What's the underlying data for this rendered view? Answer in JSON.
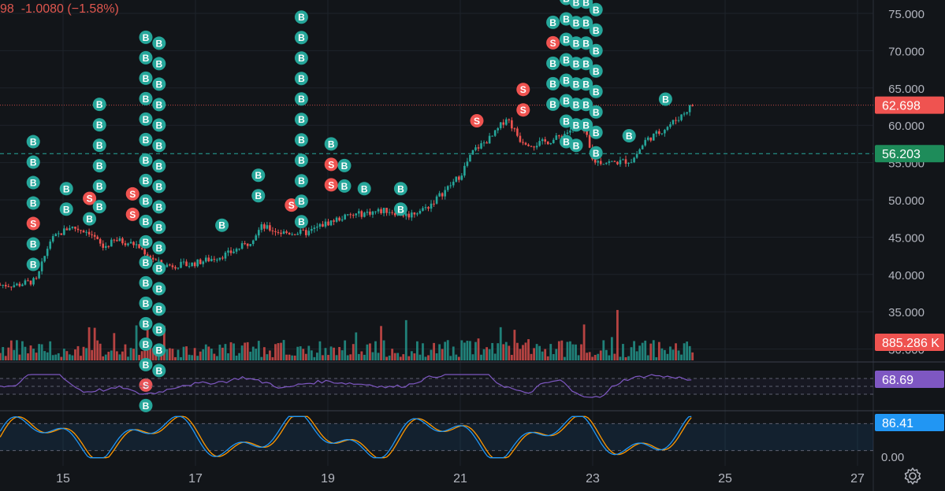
{
  "header": {
    "price_fragment": "98",
    "change": "-1.0080",
    "change_pct": "(−1.58%)"
  },
  "colors": {
    "background": "#121519",
    "up": "#26a69a",
    "down": "#ef5350",
    "rsi": "#7e57c2",
    "stoch_k": "#2196f3",
    "stoch_d": "#ff9800",
    "grid": "#1e232a",
    "axis_text": "#b2b5be"
  },
  "badges": {
    "last_price": "62.698",
    "level": "56.203",
    "volume": "885.286 K",
    "rsi": "68.69",
    "stoch": "86.41",
    "stoch_axis": "0.00"
  },
  "chart_data": [
    {
      "type": "candlestick",
      "x_ticks": [
        "15",
        "17",
        "19",
        "21",
        "23",
        "25",
        "27"
      ],
      "y_ticks": [
        "75.000",
        "70.000",
        "65.000",
        "60.000",
        "55.000",
        "50.000",
        "45.000",
        "40.000",
        "35.000",
        "30.000"
      ],
      "ylim": [
        30,
        77
      ],
      "reference_lines": [
        62.698,
        56.203
      ],
      "price_path": [
        {
          "day": 14.3,
          "close": 38.6
        },
        {
          "day": 14.6,
          "close": 39.2
        },
        {
          "day": 14.8,
          "close": 44.5
        },
        {
          "day": 15.1,
          "close": 46.4
        },
        {
          "day": 15.4,
          "close": 45.7
        },
        {
          "day": 15.6,
          "close": 43.6
        },
        {
          "day": 15.8,
          "close": 44.6
        },
        {
          "day": 16.1,
          "close": 44.0
        },
        {
          "day": 16.3,
          "close": 42.5
        },
        {
          "day": 16.5,
          "close": 41.2
        },
        {
          "day": 16.9,
          "close": 41.3
        },
        {
          "day": 17.2,
          "close": 42.0
        },
        {
          "day": 17.5,
          "close": 42.8
        },
        {
          "day": 17.8,
          "close": 44.2
        },
        {
          "day": 18.0,
          "close": 46.4
        },
        {
          "day": 18.3,
          "close": 45.6
        },
        {
          "day": 18.7,
          "close": 45.6
        },
        {
          "day": 18.9,
          "close": 46.6
        },
        {
          "day": 19.2,
          "close": 47.6
        },
        {
          "day": 19.6,
          "close": 48.3
        },
        {
          "day": 19.9,
          "close": 48.6
        },
        {
          "day": 20.2,
          "close": 47.9
        },
        {
          "day": 20.5,
          "close": 49.0
        },
        {
          "day": 20.8,
          "close": 51.5
        },
        {
          "day": 21.0,
          "close": 53.3
        },
        {
          "day": 21.2,
          "close": 56.6
        },
        {
          "day": 21.5,
          "close": 58.6
        },
        {
          "day": 21.7,
          "close": 61.1
        },
        {
          "day": 21.9,
          "close": 58.1
        },
        {
          "day": 22.1,
          "close": 57.4
        },
        {
          "day": 22.4,
          "close": 58.0
        },
        {
          "day": 22.6,
          "close": 59.0
        },
        {
          "day": 22.8,
          "close": 60.1
        },
        {
          "day": 22.9,
          "close": 58.7
        },
        {
          "day": 23.0,
          "close": 55.2
        },
        {
          "day": 23.3,
          "close": 55.0
        },
        {
          "day": 23.6,
          "close": 55.3
        },
        {
          "day": 23.8,
          "close": 58.0
        },
        {
          "day": 24.0,
          "close": 59.0
        },
        {
          "day": 24.3,
          "close": 61.0
        },
        {
          "day": 24.5,
          "close": 62.7
        }
      ],
      "signals": [
        {
          "day": 14.55,
          "kind": [
            "B",
            "B",
            "B",
            "B",
            "S",
            "B",
            "B"
          ],
          "top_price": 57.8
        },
        {
          "day": 15.05,
          "kind": [
            "B",
            "B"
          ],
          "top_price": 51.5
        },
        {
          "day": 15.4,
          "kind": [
            "S",
            "B"
          ],
          "top_price": 50.2
        },
        {
          "day": 15.55,
          "kind": [
            "B",
            "B",
            "B",
            "B",
            "B",
            "B"
          ],
          "top_price": 62.8
        },
        {
          "day": 16.05,
          "kind": [
            "S",
            "S"
          ],
          "top_price": 50.8
        },
        {
          "day": 16.25,
          "kind": [
            "B",
            "B",
            "B",
            "B",
            "B",
            "B",
            "B",
            "B",
            "B",
            "B",
            "B",
            "B",
            "B",
            "B",
            "B",
            "B",
            "B",
            "S",
            "B"
          ],
          "top_price": 71.8
        },
        {
          "day": 16.45,
          "kind": [
            "B",
            "B",
            "B",
            "B",
            "B",
            "B",
            "B",
            "B",
            "B",
            "B",
            "B",
            "B",
            "B",
            "B",
            "B",
            "B",
            "B"
          ],
          "top_price": 71.0
        },
        {
          "day": 17.4,
          "kind": [
            "B"
          ],
          "top_price": 46.6
        },
        {
          "day": 17.95,
          "kind": [
            "B",
            "B"
          ],
          "top_price": 53.3
        },
        {
          "day": 18.45,
          "kind": [
            "S"
          ],
          "top_price": 49.3
        },
        {
          "day": 18.6,
          "kind": [
            "B",
            "B",
            "B",
            "B",
            "B",
            "B",
            "B",
            "B",
            "B",
            "B",
            "B"
          ],
          "top_price": 74.5
        },
        {
          "day": 19.05,
          "kind": [
            "B",
            "S",
            "S"
          ],
          "top_price": 57.5
        },
        {
          "day": 19.25,
          "kind": [
            "B",
            "B"
          ],
          "top_price": 54.6
        },
        {
          "day": 19.55,
          "kind": [
            "B"
          ],
          "top_price": 51.5
        },
        {
          "day": 20.1,
          "kind": [
            "B",
            "B"
          ],
          "top_price": 51.5
        },
        {
          "day": 21.25,
          "kind": [
            "S"
          ],
          "top_price": 60.6
        },
        {
          "day": 21.95,
          "kind": [
            "S",
            "S"
          ],
          "top_price": 64.8
        },
        {
          "day": 22.4,
          "kind": [
            "B",
            "S",
            "B",
            "B",
            "B"
          ],
          "top_price": 73.8
        },
        {
          "day": 22.6,
          "kind": [
            "B",
            "B",
            "B",
            "B",
            "B",
            "B",
            "B",
            "B"
          ],
          "top_price": 77.0
        },
        {
          "day": 22.75,
          "kind": [
            "B",
            "B",
            "B",
            "B",
            "B",
            "B",
            "B",
            "B"
          ],
          "top_price": 76.5
        },
        {
          "day": 22.9,
          "kind": [
            "B",
            "B",
            "B",
            "B",
            "B",
            "B",
            "B"
          ],
          "top_price": 76.5
        },
        {
          "day": 23.05,
          "kind": [
            "B",
            "B",
            "B",
            "B",
            "B",
            "B",
            "B",
            "B"
          ],
          "top_price": 75.5
        },
        {
          "day": 23.55,
          "kind": [
            "B"
          ],
          "top_price": 58.6
        },
        {
          "day": 24.1,
          "kind": [
            "B"
          ],
          "top_price": 63.5
        }
      ]
    },
    {
      "type": "bar",
      "name": "volume",
      "last_value": "885.286 K"
    },
    {
      "type": "line",
      "name": "rsi",
      "last_value": 68.69,
      "ylim": [
        0,
        100
      ],
      "bands": [
        70,
        30
      ]
    },
    {
      "type": "line",
      "name": "stochastic",
      "last_value": 86.41,
      "ylim": [
        0,
        100
      ],
      "bands": [
        80,
        20
      ]
    }
  ]
}
